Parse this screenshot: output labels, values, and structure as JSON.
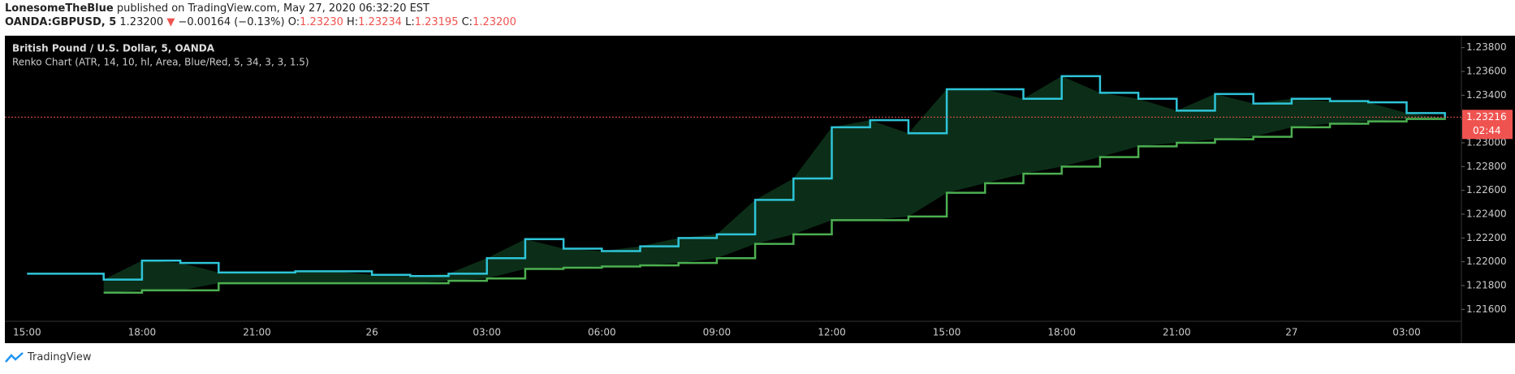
{
  "header": {
    "author": "LonesomeTheBlue",
    "published": "published on TradingView.com, May 27, 2020 06:32:20 EST",
    "symbol": "OANDA:GBPUSD, 5",
    "last": "1.23200",
    "arrow": "▼",
    "change": "−0.00164 (−0.13%)",
    "o_label": "O:",
    "o": "1.23230",
    "h_label": "H:",
    "h": "1.23234",
    "l_label": "L:",
    "l": "1.23195",
    "c_label": "C:",
    "c": "1.23200"
  },
  "chart_data": {
    "type": "line",
    "title": "British Pound / U.S. Dollar, 5, OANDA",
    "subtitle": "Renko Chart (ATR, 14, 10, hl, Area, Blue/Red, 5, 34, 3, 3, 1.5)",
    "categories": [
      "15:00",
      null,
      null,
      "18:00",
      null,
      null,
      "21:00",
      null,
      null,
      "26",
      null,
      null,
      "03:00",
      null,
      null,
      "06:00",
      null,
      null,
      "09:00",
      null,
      null,
      "12:00",
      null,
      null,
      "15:00",
      null,
      null,
      "18:00",
      null,
      null,
      "21:00",
      null,
      null,
      "27",
      null,
      null,
      "03:00",
      null
    ],
    "series": [
      {
        "color": "#2ec4d8",
        "values": [
          1.219,
          1.219,
          1.2185,
          1.2201,
          1.2199,
          1.2191,
          1.2191,
          1.2192,
          1.2192,
          1.2189,
          1.2188,
          1.219,
          1.2203,
          1.2219,
          1.2211,
          1.2209,
          1.2213,
          1.222,
          1.2223,
          1.2252,
          1.227,
          1.2313,
          1.2319,
          1.2308,
          1.2345,
          1.2345,
          1.2337,
          1.2356,
          1.2342,
          1.2337,
          1.2327,
          1.2341,
          1.2333,
          1.2337,
          1.2335,
          1.2334,
          1.2325,
          1.2321
        ]
      },
      {
        "color": "#4caf50",
        "values": [
          null,
          null,
          1.2174,
          1.2176,
          1.2176,
          1.2182,
          1.2182,
          1.2182,
          1.2182,
          1.2182,
          1.2182,
          1.2184,
          1.2186,
          1.2194,
          1.2195,
          1.2196,
          1.2197,
          1.2199,
          1.2203,
          1.2215,
          1.2223,
          1.2235,
          1.2235,
          1.2238,
          1.2258,
          1.2266,
          1.2274,
          1.228,
          1.2288,
          1.2297,
          1.23,
          1.2303,
          1.2305,
          1.2313,
          1.2316,
          1.2318,
          1.232,
          1.2321
        ]
      }
    ],
    "ylim": [
      1.215,
      1.239
    ],
    "yticks": [
      {
        "value": 1.216,
        "label": "1.21600"
      },
      {
        "value": 1.218,
        "label": "1.21800"
      },
      {
        "value": 1.22,
        "label": "1.22000"
      },
      {
        "value": 1.222,
        "label": "1.22200"
      },
      {
        "value": 1.224,
        "label": "1.22400"
      },
      {
        "value": 1.226,
        "label": "1.22600"
      },
      {
        "value": 1.228,
        "label": "1.22800"
      },
      {
        "value": 1.23,
        "label": "1.23000"
      },
      {
        "value": 1.232,
        "label": "1.23200"
      },
      {
        "value": 1.234,
        "label": "1.23400"
      },
      {
        "value": 1.236,
        "label": "1.23600"
      },
      {
        "value": 1.238,
        "label": "1.23800"
      }
    ],
    "last_price": 1.23216,
    "last_price_color": "#ef5350",
    "countdown": "02:44"
  },
  "footer": {
    "brand": "TradingView"
  }
}
